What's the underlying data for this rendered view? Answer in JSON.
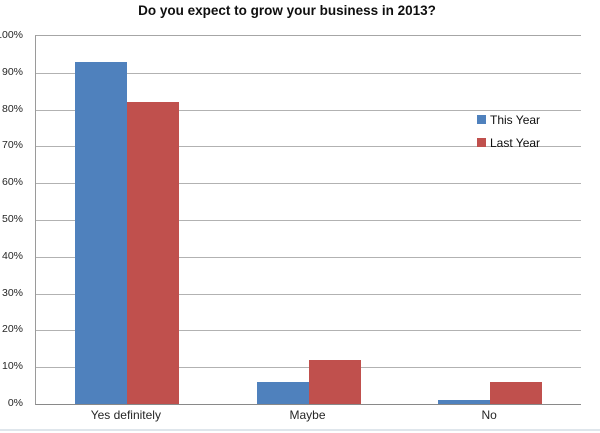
{
  "chart_data": {
    "type": "bar",
    "title": "Do you expect to grow your business in 2013?",
    "categories": [
      "Yes definitely",
      "Maybe",
      "No"
    ],
    "series": [
      {
        "name": "This Year",
        "color": "#4F81BD",
        "values": [
          93,
          6,
          1
        ]
      },
      {
        "name": "Last Year",
        "color": "#C0504D",
        "values": [
          82,
          12,
          6
        ]
      }
    ],
    "xlabel": "",
    "ylabel": "",
    "ylim": [
      0,
      100
    ],
    "ytick_step": 10,
    "ytick_suffix": "%",
    "grid": true,
    "gridline_color": "#b2b2b2",
    "legend_position": "right-inside",
    "plot_background": "#ffffff"
  }
}
